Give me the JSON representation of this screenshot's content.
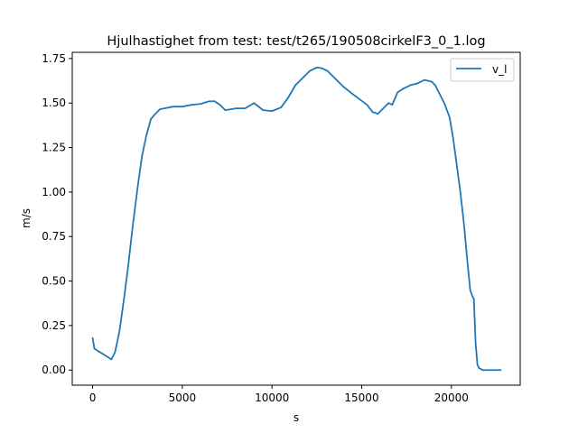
{
  "chart_data": {
    "type": "line",
    "title": "Hjulhastighet from test: test/t265/190508cirkelF3_0_1.log",
    "xlabel": "s",
    "ylabel": "m/s",
    "xlim": [
      -1135,
      23835
    ],
    "ylim": [
      -0.085,
      1.785
    ],
    "xticks": [
      0,
      5000,
      10000,
      15000,
      20000
    ],
    "xtick_labels": [
      "0",
      "5000",
      "10000",
      "15000",
      "20000"
    ],
    "yticks": [
      0.0,
      0.25,
      0.5,
      0.75,
      1.0,
      1.25,
      1.5,
      1.75
    ],
    "ytick_labels": [
      "0.00",
      "0.25",
      "0.50",
      "0.75",
      "1.00",
      "1.25",
      "1.50",
      "1.75"
    ],
    "grid": false,
    "legend_position": "upper-right",
    "series": [
      {
        "name": "v_l",
        "color": "#1f77b4",
        "x": [
          0,
          100,
          1050,
          1250,
          1500,
          1750,
          2000,
          2250,
          2500,
          2750,
          3000,
          3250,
          3500,
          3750,
          4000,
          4500,
          5000,
          5500,
          6000,
          6500,
          6800,
          7100,
          7400,
          7700,
          8000,
          8500,
          9000,
          9500,
          10000,
          10500,
          10900,
          11300,
          11700,
          12100,
          12500,
          12800,
          13100,
          13500,
          14000,
          14500,
          14900,
          15300,
          15600,
          15900,
          16200,
          16500,
          16700,
          17000,
          17300,
          17700,
          18100,
          18500,
          18900,
          19100,
          19300,
          19600,
          19900,
          20100,
          20300,
          20500,
          20700,
          20900,
          21050,
          21150,
          21250,
          21350,
          21450,
          21550,
          21650,
          21750,
          22000,
          22300,
          22750
        ],
        "y": [
          0.18,
          0.12,
          0.06,
          0.1,
          0.22,
          0.4,
          0.6,
          0.82,
          1.02,
          1.2,
          1.32,
          1.41,
          1.44,
          1.465,
          1.47,
          1.48,
          1.48,
          1.49,
          1.495,
          1.51,
          1.51,
          1.49,
          1.46,
          1.465,
          1.47,
          1.47,
          1.5,
          1.46,
          1.455,
          1.475,
          1.53,
          1.6,
          1.64,
          1.68,
          1.7,
          1.695,
          1.68,
          1.64,
          1.59,
          1.55,
          1.52,
          1.49,
          1.45,
          1.44,
          1.47,
          1.5,
          1.49,
          1.56,
          1.58,
          1.6,
          1.61,
          1.63,
          1.62,
          1.6,
          1.56,
          1.5,
          1.42,
          1.3,
          1.15,
          1.0,
          0.82,
          0.6,
          0.45,
          0.42,
          0.4,
          0.15,
          0.03,
          0.01,
          0.005,
          0.0,
          0.0,
          0.0,
          0.0
        ]
      }
    ]
  }
}
